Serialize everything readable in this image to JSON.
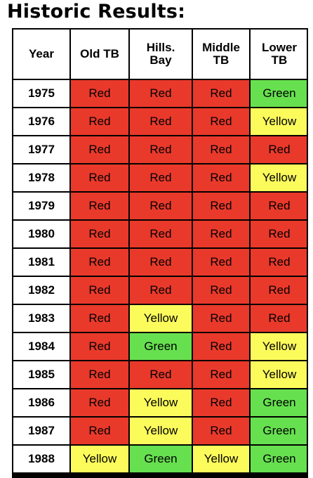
{
  "title": "Historic Results:",
  "columns": [
    "Year",
    "Old TB",
    "Hills. Bay",
    "Middle TB",
    "Lower TB"
  ],
  "status_colors": {
    "Red": "#e9392b",
    "Yellow": "#fcfb5c",
    "Green": "#66e04f"
  },
  "rows": [
    {
      "year": "1975",
      "values": [
        "Red",
        "Red",
        "Red",
        "Green"
      ]
    },
    {
      "year": "1976",
      "values": [
        "Red",
        "Red",
        "Red",
        "Yellow"
      ]
    },
    {
      "year": "1977",
      "values": [
        "Red",
        "Red",
        "Red",
        "Red"
      ]
    },
    {
      "year": "1978",
      "values": [
        "Red",
        "Red",
        "Red",
        "Yellow"
      ]
    },
    {
      "year": "1979",
      "values": [
        "Red",
        "Red",
        "Red",
        "Red"
      ]
    },
    {
      "year": "1980",
      "values": [
        "Red",
        "Red",
        "Red",
        "Red"
      ]
    },
    {
      "year": "1981",
      "values": [
        "Red",
        "Red",
        "Red",
        "Red"
      ]
    },
    {
      "year": "1982",
      "values": [
        "Red",
        "Red",
        "Red",
        "Red"
      ]
    },
    {
      "year": "1983",
      "values": [
        "Red",
        "Yellow",
        "Red",
        "Red"
      ]
    },
    {
      "year": "1984",
      "values": [
        "Red",
        "Green",
        "Red",
        "Yellow"
      ]
    },
    {
      "year": "1985",
      "values": [
        "Red",
        "Red",
        "Red",
        "Yellow"
      ]
    },
    {
      "year": "1986",
      "values": [
        "Red",
        "Yellow",
        "Red",
        "Green"
      ]
    },
    {
      "year": "1987",
      "values": [
        "Red",
        "Yellow",
        "Red",
        "Green"
      ]
    },
    {
      "year": "1988",
      "values": [
        "Yellow",
        "Green",
        "Yellow",
        "Green"
      ]
    }
  ]
}
